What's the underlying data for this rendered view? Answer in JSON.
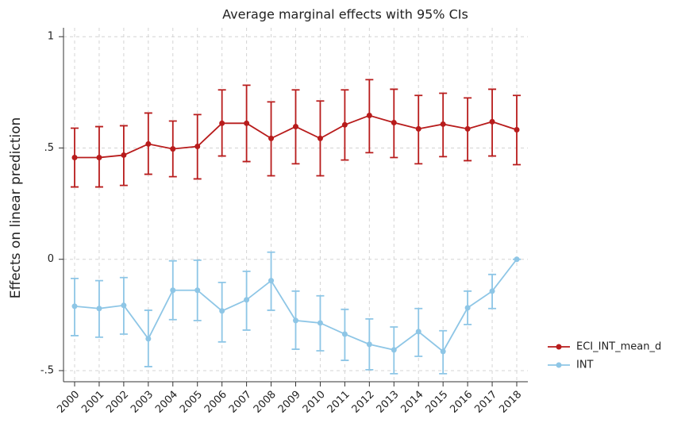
{
  "chart_data": {
    "type": "line",
    "title": "Average marginal effects with 95% CIs",
    "y_label": "Effects on linear prediction",
    "categories": [
      "2000",
      "2001",
      "2002",
      "2003",
      "2004",
      "2005",
      "2006",
      "2007",
      "2008",
      "2009",
      "2010",
      "2011",
      "2012",
      "2013",
      "2014",
      "2015",
      "2016",
      "2017",
      "2018"
    ],
    "ylim": [
      -0.55,
      1.04
    ],
    "yticks": [
      {
        "value": -0.5,
        "label": "-.5"
      },
      0,
      {
        "value": 0.5,
        "label": ".5"
      },
      1
    ],
    "grid": true,
    "legend": "right",
    "series": [
      {
        "name": "ECI_INT_mean_d",
        "color": "#b81c1c",
        "values": [
          0.457,
          0.457,
          0.468,
          0.518,
          0.496,
          0.507,
          0.611,
          0.611,
          0.543,
          0.596,
          0.543,
          0.604,
          0.646,
          0.614,
          0.586,
          0.607,
          0.586,
          0.618,
          0.582
        ],
        "lower": [
          0.325,
          0.325,
          0.332,
          0.382,
          0.371,
          0.361,
          0.464,
          0.439,
          0.375,
          0.429,
          0.375,
          0.446,
          0.479,
          0.457,
          0.429,
          0.461,
          0.443,
          0.464,
          0.425
        ],
        "upper": [
          0.589,
          0.596,
          0.6,
          0.657,
          0.621,
          0.65,
          0.761,
          0.782,
          0.707,
          0.761,
          0.711,
          0.761,
          0.807,
          0.764,
          0.736,
          0.746,
          0.725,
          0.764,
          0.736
        ]
      },
      {
        "name": "INT",
        "color": "#8ec6e6",
        "values": [
          -0.211,
          -0.221,
          -0.207,
          -0.357,
          -0.139,
          -0.139,
          -0.232,
          -0.182,
          -0.096,
          -0.275,
          -0.286,
          -0.336,
          -0.382,
          -0.407,
          -0.325,
          -0.414,
          -0.218,
          -0.143,
          0
        ],
        "lower": [
          -0.343,
          -0.35,
          -0.336,
          -0.482,
          -0.271,
          -0.275,
          -0.371,
          -0.318,
          -0.229,
          -0.404,
          -0.411,
          -0.454,
          -0.496,
          -0.514,
          -0.436,
          -0.514,
          -0.293,
          -0.221,
          0
        ],
        "upper": [
          -0.086,
          -0.096,
          -0.082,
          -0.229,
          -0.007,
          -0.004,
          -0.104,
          -0.054,
          0.032,
          -0.143,
          -0.164,
          -0.225,
          -0.268,
          -0.304,
          -0.221,
          -0.321,
          -0.143,
          -0.068,
          0
        ]
      }
    ]
  }
}
